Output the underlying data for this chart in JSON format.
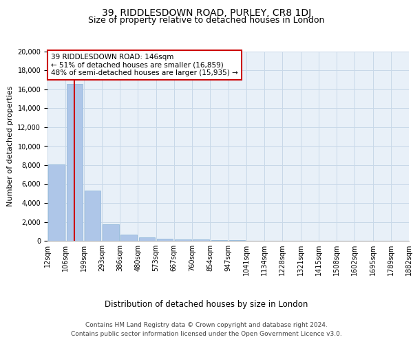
{
  "title": "39, RIDDLESDOWN ROAD, PURLEY, CR8 1DJ",
  "subtitle": "Size of property relative to detached houses in London",
  "xlabel": "Distribution of detached houses by size in London",
  "ylabel": "Number of detached properties",
  "bar_values": [
    8100,
    16600,
    5300,
    1750,
    650,
    350,
    200,
    150,
    150,
    100,
    50,
    30,
    20,
    15,
    10,
    8,
    6,
    5,
    4,
    3
  ],
  "xlabels": [
    "12sqm",
    "106sqm",
    "199sqm",
    "293sqm",
    "386sqm",
    "480sqm",
    "573sqm",
    "667sqm",
    "760sqm",
    "854sqm",
    "947sqm",
    "1041sqm",
    "1134sqm",
    "1228sqm",
    "1321sqm",
    "1415sqm",
    "1508sqm",
    "1602sqm",
    "1695sqm",
    "1789sqm",
    "1882sqm"
  ],
  "bar_color": "#aec6e8",
  "bar_edge_color": "#8ab4d8",
  "grid_color": "#c8d8e8",
  "background_color": "#e8f0f8",
  "vline_x": 1.0,
  "vline_color": "#cc0000",
  "annotation_box_text": "39 RIDDLESDOWN ROAD: 146sqm\n← 51% of detached houses are smaller (16,859)\n48% of semi-detached houses are larger (15,935) →",
  "annotation_box_color": "#ffffff",
  "annotation_box_edge_color": "#cc0000",
  "ylim": [
    0,
    20000
  ],
  "yticks": [
    0,
    2000,
    4000,
    6000,
    8000,
    10000,
    12000,
    14000,
    16000,
    18000,
    20000
  ],
  "footer_line1": "Contains HM Land Registry data © Crown copyright and database right 2024.",
  "footer_line2": "Contains public sector information licensed under the Open Government Licence v3.0.",
  "title_fontsize": 10,
  "subtitle_fontsize": 9,
  "tick_fontsize": 7,
  "ylabel_fontsize": 8,
  "xlabel_fontsize": 8.5,
  "annotation_fontsize": 7.5,
  "footer_fontsize": 6.5
}
